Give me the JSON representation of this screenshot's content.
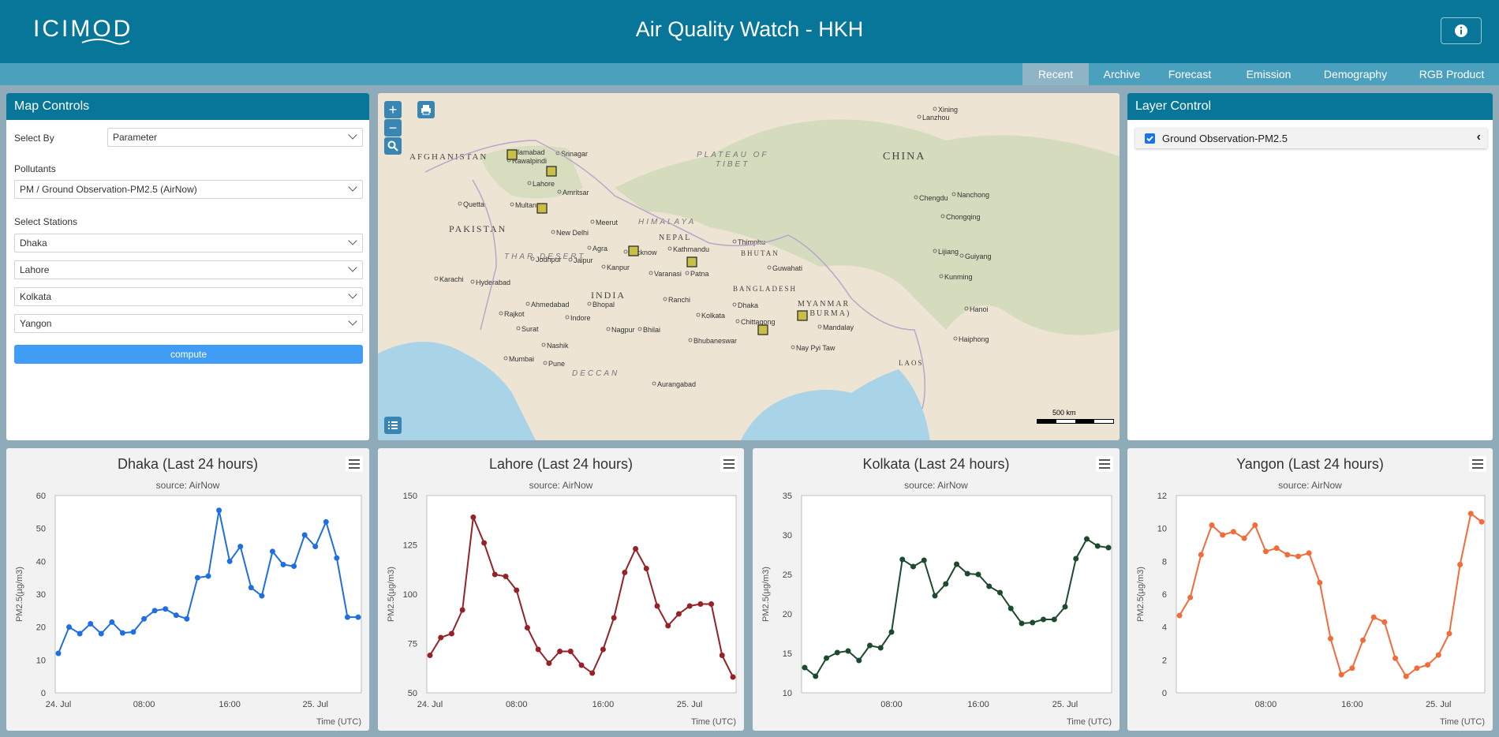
{
  "header": {
    "logo_text": "ICIMOD",
    "title": "Air Quality Watch - HKH",
    "info_icon": "info-icon"
  },
  "nav": {
    "tabs": [
      {
        "label": "Recent",
        "active": true
      },
      {
        "label": "Archive"
      },
      {
        "label": "Forecast"
      },
      {
        "label": "Emission"
      },
      {
        "label": "Demography"
      },
      {
        "label": "RGB Product"
      }
    ]
  },
  "map_controls": {
    "title": "Map Controls",
    "select_by_label": "Select By",
    "select_by_value": "Parameter",
    "pollutants_label": "Pollutants",
    "pollutants_value": "PM / Ground Observation-PM2.5 (AirNow)",
    "stations_label": "Select Stations",
    "stations": [
      "Dhaka",
      "Lahore",
      "Kolkata",
      "Yangon"
    ],
    "compute_label": "compute"
  },
  "map": {
    "zoom_in": "+",
    "zoom_out": "−",
    "scale_label": "500 km",
    "countries": [
      "AFGHANISTAN",
      "PAKISTAN",
      "INDIA",
      "CHINA",
      "NEPAL",
      "BHUTAN",
      "BANGLADESH",
      "MYANMAR",
      "(BURMA)",
      "LAOS"
    ],
    "regions": [
      "PLATEAU OF",
      "TIBET",
      "HIMALAYA",
      "THAR DESERT",
      "DECCAN"
    ],
    "cities": [
      "Islamabad",
      "Rawalpindi",
      "Srinagar",
      "Lahore",
      "Amritsar",
      "Quetta",
      "Multan",
      "New Delhi",
      "Meerut",
      "Jodhpur",
      "Jaipur",
      "Agra",
      "Lucknow",
      "Kanpur",
      "Karachi",
      "Hyderabad",
      "Ahmedabad",
      "Bhopal",
      "Indore",
      "Rajkot",
      "Surat",
      "Nashik",
      "Mumbai",
      "Pune",
      "Nagpur",
      "Bhilai",
      "Ranchi",
      "Varanasi",
      "Patna",
      "Kathmandu",
      "Thimphu",
      "Guwahati",
      "Dhaka",
      "Kolkata",
      "Chittagong",
      "Bhubaneswar",
      "Mandalay",
      "Nay Pyi Taw",
      "Xining",
      "Lanzhou",
      "Chengdu",
      "Chongqing",
      "Nanchong",
      "Lijiang",
      "Kunming",
      "Guiyang",
      "Hanoi",
      "Haiphong",
      "Aurangabad"
    ],
    "colors": {
      "land": "#ede4d4",
      "water": "#a9d3e6",
      "terrain": "#c9d9b3",
      "station": "#c9be48"
    }
  },
  "layer_control": {
    "title": "Layer Control",
    "layers": [
      {
        "label": "Ground Observation-PM2.5",
        "checked": true
      }
    ]
  },
  "charts": [
    {
      "title": "Dhaka (Last 24 hours)",
      "subtitle": "source: AirNow",
      "color": "#1f6fe0",
      "chart_data": {
        "type": "line",
        "ylim": [
          0,
          60
        ],
        "yticks": [
          "0",
          "10",
          "20",
          "30",
          "40",
          "50",
          "60"
        ],
        "xticks": [
          "24. Jul",
          "08:00",
          "16:00",
          "25. Jul"
        ],
        "ylabel": "PM2.5(µg/m3)",
        "xlabel": "Time (UTC)",
        "values": [
          12,
          20,
          18,
          21,
          18,
          21.5,
          18.2,
          18.5,
          22.5,
          25,
          25.5,
          23.6,
          22.5,
          35,
          35.5,
          55.5,
          40,
          44.5,
          32,
          29.5,
          43,
          39,
          38.5,
          48,
          44.5,
          52,
          41,
          23,
          23
        ]
      }
    },
    {
      "title": "Lahore (Last 24 hours)",
      "subtitle": "source: AirNow",
      "color": "#962228",
      "chart_data": {
        "type": "line",
        "ylim": [
          50,
          150
        ],
        "yticks": [
          "50",
          "75",
          "100",
          "125",
          "150"
        ],
        "xticks": [
          "24. Jul",
          "08:00",
          "16:00",
          "25. Jul"
        ],
        "ylabel": "PM2.5(µg/m3)",
        "xlabel": "Time (UTC)",
        "values": [
          69,
          78,
          80,
          92,
          139,
          126,
          110,
          109,
          102,
          83,
          72,
          65,
          71,
          71,
          64,
          60,
          72,
          88,
          111,
          123,
          113,
          94,
          84,
          90,
          94,
          95,
          95,
          69,
          58
        ]
      }
    },
    {
      "title": "Kolkata (Last 24 hours)",
      "subtitle": "source: AirNow",
      "color": "#1c4a2c",
      "chart_data": {
        "type": "line",
        "ylim": [
          10,
          35
        ],
        "yticks": [
          "10",
          "15",
          "20",
          "25",
          "30",
          "35"
        ],
        "xticks": [
          "08:00",
          "16:00",
          "25. Jul"
        ],
        "ylabel": "PM2.5(µg/m3)",
        "xlabel": "Time (UTC)",
        "values": [
          13.2,
          12.1,
          14.4,
          15.1,
          15.3,
          14.1,
          16,
          15.7,
          17.7,
          26.9,
          26,
          26.8,
          22.3,
          23.8,
          26.3,
          25.1,
          25,
          23.5,
          22.7,
          20.7,
          18.8,
          18.9,
          19.3,
          19.3,
          20.9,
          27,
          29.5,
          28.6,
          28.4
        ]
      }
    },
    {
      "title": "Yangon (Last 24 hours)",
      "subtitle": "source: AirNow",
      "color": "#f26b3a",
      "chart_data": {
        "type": "line",
        "ylim": [
          0,
          12
        ],
        "yticks": [
          "0",
          "2",
          "4",
          "6",
          "8",
          "10",
          "12"
        ],
        "xticks": [
          "08:00",
          "16:00",
          "25. Jul"
        ],
        "ylabel": "PM2.5(µg/m3)",
        "xlabel": "Time (UTC)",
        "values": [
          4.7,
          5.8,
          8.4,
          10.2,
          9.6,
          9.8,
          9.4,
          10.2,
          8.6,
          8.8,
          8.4,
          8.3,
          8.5,
          6.7,
          3.3,
          1.1,
          1.5,
          3.2,
          4.6,
          4.3,
          2.1,
          1.0,
          1.5,
          1.7,
          2.3,
          3.6,
          7.8,
          10.9,
          10.4
        ]
      }
    }
  ]
}
